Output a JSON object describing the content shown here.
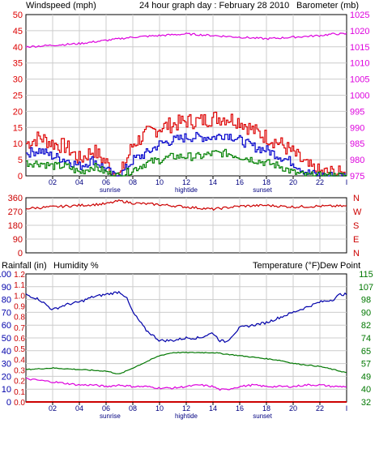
{
  "header": {
    "windspeed_label": "Windspeed (mph)",
    "title": "24 hour graph day : February 28 2010",
    "barometer_label": "Barometer (mb)"
  },
  "colors": {
    "windspeed": "#dd0000",
    "wind_avg": "#0000cc",
    "wind_low": "#008000",
    "barometer": "#dd00dd",
    "direction": "#cc0000",
    "humidity": "#0000aa",
    "temperature": "#007700",
    "dewpoint": "#dd00dd",
    "rainfall": "#cc0000",
    "grid": "#cccccc",
    "frame": "#000000"
  },
  "x_axis": {
    "ticks": [
      "02",
      "04",
      "06",
      "08",
      "10",
      "12",
      "14",
      "16",
      "18",
      "20",
      "22"
    ],
    "end_tick": "I",
    "sunrise": "sunrise",
    "hightide": "hightide",
    "sunset": "sunset"
  },
  "lower_header": {
    "rainfall_label": "Rainfall (in)",
    "humidity_label": "Humidity %",
    "temperature_label": "Temperature (°F)",
    "dewpoint_label": "Dew Point"
  },
  "chart_data": [
    {
      "type": "line",
      "panel": "wind-barometer",
      "x_unit": "hour",
      "left_axis": {
        "ticks": [
          "0",
          "5",
          "10",
          "15",
          "20",
          "25",
          "30",
          "35",
          "40",
          "45",
          "50"
        ],
        "ylim": [
          0,
          50
        ]
      },
      "right_axis": {
        "ticks": [
          "975",
          "980",
          "985",
          "990",
          "995",
          "1000",
          "1005",
          "1010",
          "1015",
          "1020",
          "1025"
        ],
        "ylim": [
          975,
          1025
        ]
      },
      "grid": true,
      "series": [
        {
          "name": "Windspeed (mph)",
          "axis": "left",
          "color": "#dd0000",
          "x": [
            0,
            1,
            2,
            3,
            4,
            5,
            6,
            6.5,
            7,
            8,
            9,
            10,
            11,
            12,
            13,
            14,
            15,
            16,
            17,
            18,
            19,
            20,
            21,
            22,
            23,
            24
          ],
          "y": [
            10,
            12,
            10,
            9,
            5,
            8,
            4,
            1,
            0,
            10,
            13,
            15,
            16,
            17,
            17,
            18,
            18,
            17,
            14,
            12,
            10,
            7,
            3,
            1,
            1,
            0
          ]
        },
        {
          "name": "Wind average",
          "axis": "left",
          "color": "#0000cc",
          "x": [
            0,
            1,
            2,
            3,
            4,
            5,
            6,
            6.5,
            7,
            8,
            9,
            10,
            11,
            12,
            13,
            14,
            15,
            16,
            17,
            18,
            19,
            20,
            21,
            22,
            23,
            24
          ],
          "y": [
            7,
            8,
            6,
            5,
            3,
            5,
            2,
            0,
            0,
            5,
            7,
            10,
            11,
            12,
            12,
            12,
            13,
            11,
            9,
            8,
            6,
            4,
            1,
            0,
            0,
            0
          ]
        },
        {
          "name": "Wind low",
          "axis": "left",
          "color": "#008000",
          "x": [
            0,
            1,
            2,
            3,
            4,
            5,
            6,
            6.5,
            7,
            8,
            9,
            10,
            11,
            12,
            13,
            14,
            15,
            16,
            17,
            18,
            19,
            20,
            21,
            22,
            23,
            24
          ],
          "y": [
            4,
            4,
            3,
            3,
            1,
            3,
            1,
            0,
            0,
            2,
            4,
            5,
            6,
            6,
            6,
            7,
            7,
            6,
            5,
            4,
            3,
            1,
            0,
            0,
            0,
            0
          ]
        },
        {
          "name": "Barometer (mb)",
          "axis": "right",
          "color": "#dd00dd",
          "x": [
            0,
            2,
            4,
            6,
            8,
            10,
            12,
            14,
            16,
            18,
            20,
            22,
            23,
            24
          ],
          "y": [
            1015,
            1015.5,
            1016,
            1017,
            1018,
            1018.5,
            1019,
            1018.5,
            1018,
            1017.5,
            1018,
            1018.5,
            1019,
            1019
          ]
        }
      ]
    },
    {
      "type": "line",
      "panel": "wind-direction",
      "x_unit": "hour",
      "left_axis": {
        "ticks": [
          "360",
          "270",
          "180",
          "90",
          "0"
        ],
        "ylim": [
          0,
          360
        ]
      },
      "right_axis": {
        "ticks": [
          "N",
          "W",
          "S",
          "E",
          "N"
        ]
      },
      "grid": true,
      "series": [
        {
          "name": "Wind direction",
          "color": "#cc0000",
          "x": [
            0,
            2,
            4,
            6,
            7,
            8,
            10,
            12,
            14,
            16,
            18,
            20,
            22,
            24
          ],
          "y": [
            290,
            300,
            310,
            320,
            340,
            325,
            315,
            300,
            285,
            305,
            310,
            300,
            305,
            305
          ]
        }
      ]
    },
    {
      "type": "line",
      "panel": "humidity-temperature",
      "x_unit": "hour",
      "left_axis_rain": {
        "ticks": [
          "0.0",
          "0.1",
          "0.2",
          "0.3",
          "0.4",
          "0.5",
          "0.6",
          "0.7",
          "0.8",
          "0.9",
          "1.0",
          "1.1",
          "1.2"
        ],
        "ylim": [
          0,
          1.2
        ]
      },
      "left_axis_humidity": {
        "ticks": [
          "0",
          "10",
          "20",
          "30",
          "40",
          "50",
          "60",
          "70",
          "80",
          "90",
          "100"
        ],
        "ylim": [
          0,
          100
        ]
      },
      "right_axis": {
        "ticks": [
          "32",
          "40",
          "49",
          "57",
          "65",
          "74",
          "82",
          "90",
          "98",
          "107",
          "115"
        ],
        "ylim": [
          32,
          115
        ]
      },
      "grid": true,
      "series": [
        {
          "name": "Humidity %",
          "axis": "humidity",
          "color": "#0000aa",
          "x": [
            0,
            1,
            2,
            3,
            4,
            5,
            6,
            7,
            7.5,
            8,
            9,
            10,
            11,
            12,
            13,
            14,
            14.5,
            15,
            16,
            17,
            18,
            19,
            20,
            21,
            22,
            23,
            23.5,
            24
          ],
          "y": [
            84,
            80,
            72,
            76,
            78,
            82,
            84,
            86,
            82,
            70,
            56,
            48,
            48,
            50,
            50,
            54,
            48,
            47,
            58,
            60,
            62,
            66,
            70,
            74,
            78,
            80,
            84,
            84
          ]
        },
        {
          "name": "Temperature (°F)",
          "axis": "temperature",
          "color": "#007700",
          "x": [
            0,
            2,
            4,
            6,
            7,
            8,
            9,
            10,
            11,
            12,
            13,
            14,
            15,
            16,
            17,
            18,
            19,
            20,
            21,
            22,
            23,
            24
          ],
          "y": [
            53,
            54,
            53,
            52,
            50,
            54,
            58,
            62,
            64,
            64,
            64,
            64,
            63,
            62,
            61,
            60,
            59,
            57,
            56,
            55,
            53,
            51
          ]
        },
        {
          "name": "Dew Point",
          "axis": "temperature",
          "color": "#dd00dd",
          "x": [
            0,
            1,
            2,
            3,
            4,
            5,
            6,
            7,
            8,
            9,
            10,
            11,
            12,
            13,
            14,
            14.5,
            15,
            16,
            17,
            18,
            19,
            20,
            21,
            22,
            23,
            24
          ],
          "y": [
            47,
            46,
            45,
            44,
            43,
            43,
            42,
            43,
            42,
            42,
            41,
            41,
            42,
            43,
            42,
            40,
            40,
            42,
            43,
            42,
            42,
            42,
            43,
            43,
            42,
            42
          ]
        },
        {
          "name": "Rainfall (in)",
          "axis": "rain",
          "color": "#cc0000",
          "x": [
            0,
            24
          ],
          "y": [
            0,
            0
          ]
        }
      ]
    }
  ]
}
